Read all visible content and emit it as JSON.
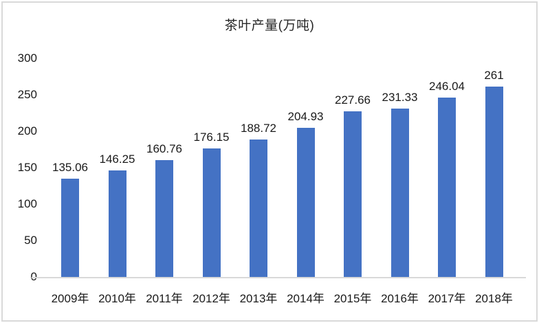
{
  "chart_data": {
    "type": "bar",
    "title": "茶叶产量(万吨)",
    "categories": [
      "2009年",
      "2010年",
      "2011年",
      "2012年",
      "2013年",
      "2014年",
      "2015年",
      "2016年",
      "2017年",
      "2018年"
    ],
    "values": [
      135.06,
      146.25,
      160.76,
      176.15,
      188.72,
      204.93,
      227.66,
      231.33,
      246.04,
      261
    ],
    "data_labels": [
      "135.06",
      "146.25",
      "160.76",
      "176.15",
      "188.72",
      "204.93",
      "227.66",
      "231.33",
      "246.04",
      "261"
    ],
    "yticks": [
      0,
      50,
      100,
      150,
      200,
      250,
      300
    ],
    "ylim": [
      0,
      300
    ],
    "xlabel": "",
    "ylabel": "",
    "grid": false,
    "legend_position": "none",
    "bar_color": "#4472C4",
    "axis_line_color": "#D9D9D9",
    "frame_color": "#D9D9D9",
    "text_color": "#1A1A1A",
    "background_color": "#FFFFFF"
  }
}
